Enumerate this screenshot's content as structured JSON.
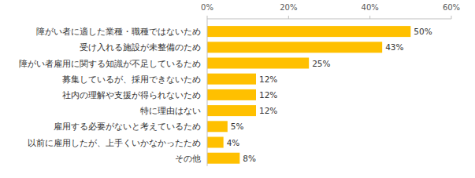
{
  "chart_data": {
    "type": "bar",
    "orientation": "horizontal",
    "categories": [
      "障がい者に適した業種・職種ではないため",
      "受け入れる施設が未整備のため",
      "障がい者雇用に関する知識が不足しているため",
      "募集しているが、採用できないため",
      "社内の理解や支援が得られないため",
      "特に理由はない",
      "雇用する必要がないと考えているため",
      "以前に雇用したが、上手くいかなかったため",
      "その他"
    ],
    "values": [
      50,
      43,
      25,
      12,
      12,
      12,
      5,
      4,
      8
    ],
    "value_labels": [
      "50%",
      "43%",
      "25%",
      "12%",
      "12%",
      "12%",
      "5%",
      "4%",
      "8%"
    ],
    "color": "#ffc000",
    "xlim": [
      0,
      60
    ],
    "xticks": [
      {
        "value": 0,
        "label": "0%"
      },
      {
        "value": 20,
        "label": "20%"
      },
      {
        "value": 40,
        "label": "40%"
      },
      {
        "value": 60,
        "label": "60%"
      }
    ],
    "data_labels": true,
    "grid": false
  }
}
